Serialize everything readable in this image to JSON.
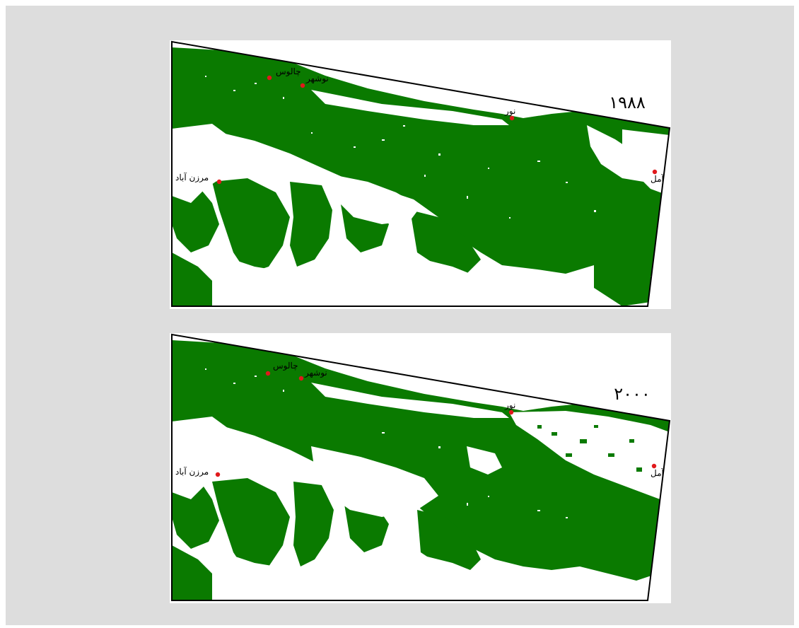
{
  "figure": {
    "forest_color": "#0a7a00",
    "city_marker_color": "#e0191c",
    "background_color": "#dddddd"
  },
  "maps": [
    {
      "year_label": "۱۹۸۸",
      "cities": [
        {
          "id": "chalus",
          "name": "چالوس"
        },
        {
          "id": "nowshahr",
          "name": "نوشهر"
        },
        {
          "id": "nur",
          "name": "نور"
        },
        {
          "id": "amol",
          "name": "آمل"
        },
        {
          "id": "marzanabad",
          "name": "مرزن آباد"
        }
      ]
    },
    {
      "year_label": "۲۰۰۰",
      "cities": [
        {
          "id": "chalus",
          "name": "چالوس"
        },
        {
          "id": "nowshahr",
          "name": "نوشهر"
        },
        {
          "id": "nur",
          "name": "نور"
        },
        {
          "id": "amol",
          "name": "آمل"
        },
        {
          "id": "marzanabad",
          "name": "مرزن آباد"
        }
      ]
    }
  ]
}
